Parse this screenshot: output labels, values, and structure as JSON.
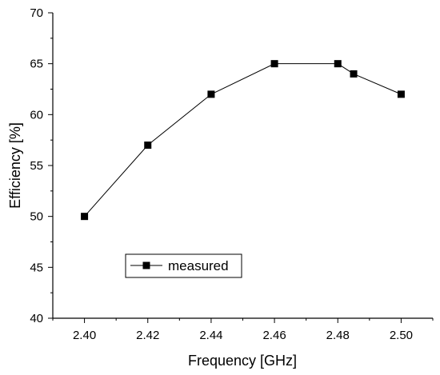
{
  "chart_data": {
    "type": "line",
    "xlabel": "Frequency [GHz]",
    "ylabel": "Efficiency [%]",
    "xlim": [
      2.39,
      2.51
    ],
    "ylim": [
      40,
      70
    ],
    "xticks": [
      "2.40",
      "2.42",
      "2.44",
      "2.46",
      "2.48",
      "2.50"
    ],
    "yticks": [
      "40",
      "45",
      "50",
      "55",
      "60",
      "65",
      "70"
    ],
    "grid": false,
    "legend_position": "bottom-left",
    "series": [
      {
        "name": "measured",
        "marker": "square",
        "color": "#000000",
        "x": [
          2.4,
          2.42,
          2.44,
          2.46,
          2.48,
          2.485,
          2.5
        ],
        "y": [
          50,
          57,
          62,
          65,
          65,
          64,
          62
        ]
      }
    ]
  }
}
